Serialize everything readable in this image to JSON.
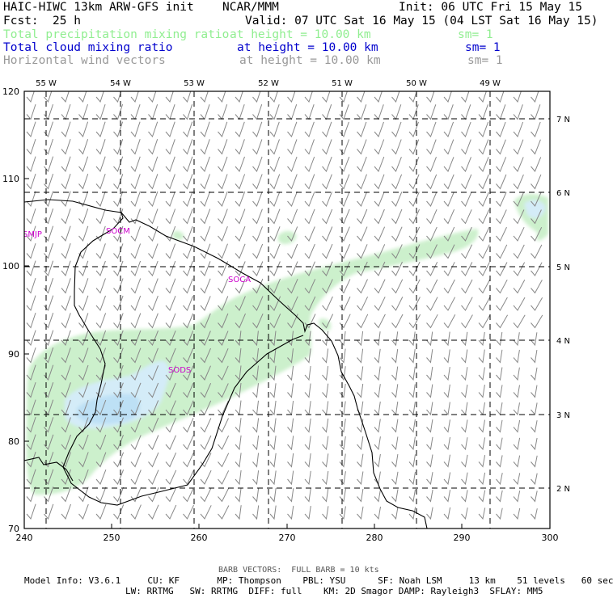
{
  "header": {
    "title": "HAIC-HIWC 13km ARW-GFS init",
    "org": "NCAR/MMM",
    "init": "Init: 06 UTC Fri 15 May 15",
    "fcst_label": "Fcst:",
    "fcst_value": "25 h",
    "valid": "Valid: 07 UTC Sat 16 May 15 (04 LST Sat 16 May 15)"
  },
  "fields": [
    {
      "name": "Total precipitation mixing ratio",
      "height": "at height = 10.00 km",
      "sm": "sm= 1",
      "color": "#90ee90"
    },
    {
      "name": "Total cloud mixing ratio",
      "height": "at height = 10.00 km",
      "sm": "sm= 1",
      "color": "#0000cd"
    },
    {
      "name": "Horizontal wind vectors",
      "height": "at height = 10.00 km",
      "sm": "sm= 1",
      "color": "#999999"
    }
  ],
  "map": {
    "x_ticks": [
      "240",
      "250",
      "260",
      "270",
      "280",
      "290",
      "300"
    ],
    "y_ticks": [
      "70",
      "80",
      "90",
      "100",
      "110",
      "120"
    ],
    "lon_labels": [
      "55 W",
      "54 W",
      "53 W",
      "52 W",
      "51 W",
      "50 W",
      "49 W"
    ],
    "lat_labels": [
      "7 N",
      "6 N",
      "5 N",
      "4 N",
      "3 N",
      "2 N"
    ],
    "stations": [
      "SMJP",
      "SOCM",
      "SOCA",
      "SODS"
    ],
    "colors": {
      "precip": "#ccf0cc",
      "cloud": "#d4ecf8",
      "cloud_dense": "#bde0f5",
      "station": "#cc00cc",
      "barb": "#888888",
      "coast": "#000000"
    }
  },
  "footer": {
    "barb_note": "BARB VECTORS:  FULL BARB = 10 kts",
    "line1": "Model Info: V3.6.1     CU: KF       MP: Thompson    PBL: YSU      SF: Noah LSM     13 km    51 levels   60 sec",
    "line2": "LW: RRTMG   SW: RRTMG  DIFF: full    KM: 2D Smagor DAMP: Rayleigh3  SFLAY: MM5"
  }
}
